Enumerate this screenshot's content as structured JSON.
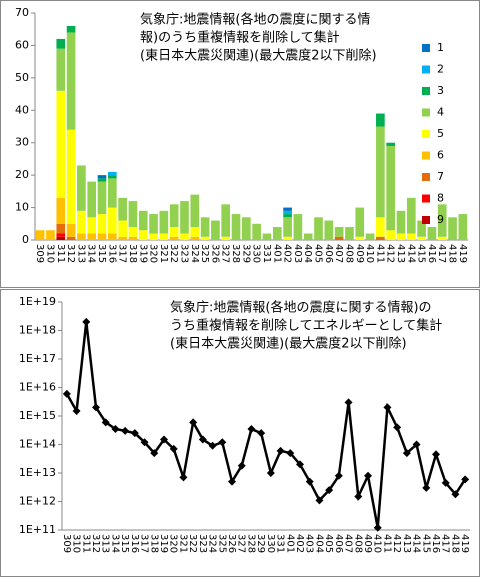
{
  "chart_data": [
    {
      "type": "bar",
      "stacked": true,
      "title_lines": [
        "気象庁:地震情報(各地の震度に関する情",
        "報)のうち重複情報を削除して集計",
        "(東日本大震災関連)(最大震度2以下削除)"
      ],
      "categories": [
        "309",
        "310",
        "311",
        "312",
        "313",
        "314",
        "315",
        "316",
        "317",
        "318",
        "319",
        "320",
        "321",
        "322",
        "323",
        "324",
        "325",
        "326",
        "327",
        "328",
        "329",
        "330",
        "331",
        "401",
        "402",
        "403",
        "404",
        "405",
        "406",
        "407",
        "408",
        "409",
        "410",
        "411",
        "412",
        "413",
        "414",
        "415",
        "416",
        "417",
        "418",
        "419"
      ],
      "series": [
        {
          "name": "1",
          "color": "#0070c0",
          "values": [
            0,
            0,
            0,
            0,
            0,
            0,
            1,
            0,
            0,
            0,
            0,
            0,
            0,
            0,
            0,
            0,
            0,
            0,
            0,
            0,
            0,
            0,
            0,
            0,
            1,
            0,
            0,
            0,
            0,
            0,
            0,
            0,
            0,
            0,
            0,
            0,
            0,
            0,
            0,
            0,
            0,
            0
          ]
        },
        {
          "name": "2",
          "color": "#00b0f0",
          "values": [
            0,
            0,
            0,
            0,
            0,
            0,
            0,
            1,
            0,
            0,
            0,
            0,
            0,
            0,
            0,
            0,
            0,
            0,
            0,
            0,
            0,
            0,
            0,
            0,
            1,
            0,
            0,
            0,
            0,
            0,
            0,
            0,
            0,
            0,
            0,
            0,
            0,
            0,
            0,
            0,
            0,
            0
          ]
        },
        {
          "name": "3",
          "color": "#00b050",
          "values": [
            0,
            0,
            3,
            2,
            0,
            0,
            1,
            1,
            0,
            0,
            0,
            0,
            0,
            0,
            0,
            0,
            0,
            0,
            0,
            0,
            0,
            0,
            0,
            0,
            1,
            0,
            0,
            0,
            0,
            0,
            0,
            0,
            0,
            4,
            1,
            0,
            0,
            0,
            0,
            0,
            0,
            0
          ]
        },
        {
          "name": "4",
          "color": "#92d050",
          "values": [
            0,
            0,
            13,
            30,
            14,
            11,
            10,
            9,
            7,
            8,
            6,
            6,
            7,
            7,
            10,
            10,
            6,
            6,
            10,
            8,
            7,
            5,
            2,
            4,
            6,
            8,
            2,
            7,
            6,
            3,
            4,
            9,
            2,
            28,
            26,
            7,
            11,
            5,
            4,
            10,
            7,
            8
          ]
        },
        {
          "name": "5",
          "color": "#ffff00",
          "values": [
            0,
            0,
            33,
            29,
            7,
            5,
            6,
            8,
            5,
            3,
            3,
            2,
            2,
            3,
            2,
            3,
            1,
            0,
            1,
            0,
            0,
            0,
            0,
            0,
            1,
            0,
            0,
            0,
            0,
            0,
            0,
            1,
            0,
            6,
            3,
            2,
            2,
            1,
            0,
            1,
            0,
            0
          ]
        },
        {
          "name": "6",
          "color": "#ffc000",
          "values": [
            3,
            3,
            8,
            4,
            2,
            2,
            2,
            2,
            1,
            1,
            0,
            0,
            0,
            1,
            0,
            1,
            0,
            0,
            0,
            0,
            0,
            0,
            0,
            0,
            0,
            0,
            0,
            0,
            0,
            0,
            0,
            0,
            0,
            0,
            0,
            0,
            0,
            0,
            0,
            0,
            0,
            0
          ]
        },
        {
          "name": "7",
          "color": "#e46c0a",
          "values": [
            0,
            0,
            3,
            1,
            0,
            0,
            0,
            0,
            0,
            0,
            0,
            0,
            0,
            0,
            0,
            0,
            0,
            0,
            0,
            0,
            0,
            0,
            0,
            0,
            0,
            0,
            0,
            0,
            0,
            1,
            0,
            0,
            0,
            1,
            0,
            0,
            0,
            0,
            0,
            0,
            0,
            0
          ]
        },
        {
          "name": "8",
          "color": "#ff0000",
          "values": [
            0,
            0,
            1,
            0,
            0,
            0,
            0,
            0,
            0,
            0,
            0,
            0,
            0,
            0,
            0,
            0,
            0,
            0,
            0,
            0,
            0,
            0,
            0,
            0,
            0,
            0,
            0,
            0,
            0,
            0,
            0,
            0,
            0,
            0,
            0,
            0,
            0,
            0,
            0,
            0,
            0,
            0
          ]
        },
        {
          "name": "9",
          "color": "#c00000",
          "values": [
            0,
            0,
            1,
            0,
            0,
            0,
            0,
            0,
            0,
            0,
            0,
            0,
            0,
            0,
            0,
            0,
            0,
            0,
            0,
            0,
            0,
            0,
            0,
            0,
            0,
            0,
            0,
            0,
            0,
            0,
            0,
            0,
            0,
            0,
            0,
            0,
            0,
            0,
            0,
            0,
            0,
            0
          ]
        }
      ],
      "ylim": [
        0,
        70
      ],
      "yticks": [
        0,
        10,
        20,
        30,
        40,
        50,
        60,
        70
      ],
      "grid": false,
      "legend": "right"
    },
    {
      "type": "line",
      "log_scale": true,
      "title_lines": [
        "気象庁:地震情報(各地の震度に関する情報)の",
        "うち重複情報を削除してエネルギーとして集計",
        "(東日本大震災関連)(最大震度2以下削除)"
      ],
      "categories": [
        "309",
        "310",
        "311",
        "312",
        "313",
        "314",
        "315",
        "316",
        "317",
        "318",
        "319",
        "320",
        "321",
        "322",
        "323",
        "324",
        "325",
        "326",
        "327",
        "328",
        "329",
        "330",
        "331",
        "401",
        "402",
        "403",
        "404",
        "405",
        "406",
        "407",
        "408",
        "409",
        "410",
        "411",
        "412",
        "413",
        "414",
        "415",
        "416",
        "417",
        "418",
        "419"
      ],
      "color": "#000000",
      "values": [
        6000000000000000.0,
        1500000000000000.0,
        2e+18,
        2000000000000000.0,
        600000000000000.0,
        350000000000000.0,
        300000000000000.0,
        250000000000000.0,
        120000000000000.0,
        50000000000000.0,
        150000000000000.0,
        70000000000000.0,
        7000000000000.0,
        600000000000000.0,
        150000000000000.0,
        90000000000000.0,
        120000000000000.0,
        5000000000000.0,
        18000000000000.0,
        350000000000000.0,
        250000000000000.0,
        10000000000000.0,
        60000000000000.0,
        50000000000000.0,
        20000000000000.0,
        5000000000000.0,
        1100000000000.0,
        2500000000000.0,
        8000000000000.0,
        3000000000000000.0,
        1500000000000.0,
        8000000000000.0,
        120000000000.0,
        2000000000000000.0,
        400000000000000.0,
        50000000000000.0,
        100000000000000.0,
        3000000000000.0,
        45000000000000.0,
        4500000000000.0,
        1800000000000.0,
        6000000000000.0
      ],
      "ylim": [
        100000000000.0,
        1e+19
      ],
      "yticks": [
        {
          "value": 100000000000.0,
          "label": "1E+11"
        },
        {
          "value": 1000000000000.0,
          "label": "1E+12"
        },
        {
          "value": 10000000000000.0,
          "label": "1E+13"
        },
        {
          "value": 100000000000000.0,
          "label": "1E+14"
        },
        {
          "value": 1000000000000000.0,
          "label": "1E+15"
        },
        {
          "value": 1e+16,
          "label": "1E+16"
        },
        {
          "value": 1e+17,
          "label": "1E+17"
        },
        {
          "value": 1e+18,
          "label": "1E+18"
        },
        {
          "value": 1e+19,
          "label": "1E+19"
        }
      ],
      "grid": false
    }
  ]
}
